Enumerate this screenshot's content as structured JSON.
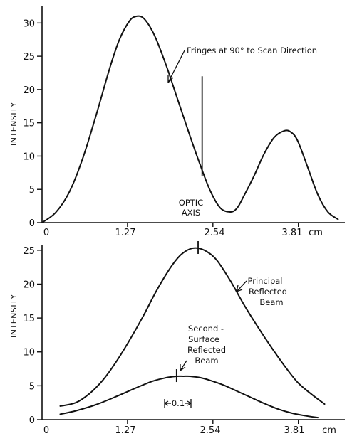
{
  "chart_data": [
    {
      "type": "line",
      "ylabel": "INTENSITY",
      "xlabel": "cm",
      "xlim": [
        0,
        4.47
      ],
      "ylim": [
        0,
        35
      ],
      "x_ticks": [
        0,
        1.27,
        2.54,
        3.81
      ],
      "x_tick_labels": [
        "0",
        "1.27",
        "2.54",
        "3.81"
      ],
      "x_unit_label": "cm",
      "y_ticks": [
        0,
        5,
        10,
        15,
        20,
        25,
        30
      ],
      "y_tick_labels": [
        "0",
        "5",
        "10",
        "15",
        "20",
        "25",
        "30"
      ],
      "series": [
        {
          "x": [
            0.0,
            0.2,
            0.4,
            0.6,
            0.8,
            1.0,
            1.15,
            1.3,
            1.4,
            1.5,
            1.6,
            1.7,
            1.85,
            2.0,
            2.2,
            2.35,
            2.5,
            2.65,
            2.8,
            2.9,
            3.0,
            3.15,
            3.3,
            3.45,
            3.6,
            3.7,
            3.8,
            3.95,
            4.1,
            4.25,
            4.4
          ],
          "y": [
            0.0,
            1.5,
            4.5,
            9.5,
            16.0,
            23.0,
            27.5,
            30.3,
            31.0,
            30.8,
            29.5,
            27.5,
            23.5,
            19.0,
            13.0,
            8.7,
            4.8,
            2.2,
            1.6,
            2.2,
            4.0,
            7.0,
            10.3,
            12.8,
            13.8,
            13.6,
            12.3,
            8.3,
            4.2,
            1.6,
            0.5
          ]
        }
      ],
      "annotations": [
        {
          "text": "Fringes at 90° to Scan Direction",
          "x": 2.38,
          "y": 10.5
        },
        {
          "text": "OPTIC",
          "x": 2.38,
          "y": 3
        },
        {
          "text": "AXIS",
          "x": 2.38,
          "y": 1.5
        }
      ],
      "marker_x": 2.38
    },
    {
      "type": "line",
      "ylabel": "INTENSITY",
      "xlabel": "cm",
      "xlim": [
        0,
        4.47
      ],
      "ylim": [
        0,
        27
      ],
      "x_ticks": [
        0,
        1.27,
        2.54,
        3.81
      ],
      "x_tick_labels": [
        "0",
        "1.27",
        "2.54",
        "3.81"
      ],
      "x_unit_label": "cm",
      "y_ticks": [
        0,
        5,
        10,
        15,
        20,
        25
      ],
      "y_tick_labels": [
        "0",
        "5",
        "10",
        "15",
        "20",
        "25"
      ],
      "series": [
        {
          "name": "Principal Reflected Beam",
          "x": [
            0.27,
            0.5,
            0.7,
            0.9,
            1.1,
            1.3,
            1.5,
            1.7,
            1.9,
            2.05,
            2.2,
            2.32,
            2.45,
            2.6,
            2.8,
            3.0,
            3.2,
            3.4,
            3.6,
            3.8,
            4.0,
            4.2
          ],
          "y": [
            2.0,
            2.5,
            3.8,
            5.8,
            8.5,
            11.7,
            15.2,
            19.0,
            22.3,
            24.2,
            25.2,
            25.3,
            24.8,
            23.5,
            20.5,
            17.0,
            13.8,
            10.8,
            8.0,
            5.5,
            3.8,
            2.3
          ]
        },
        {
          "name": "Second - Surface Reflected Beam",
          "x": [
            0.27,
            0.5,
            0.8,
            1.1,
            1.4,
            1.65,
            1.85,
            2.0,
            2.1,
            2.2,
            2.35,
            2.5,
            2.7,
            2.9,
            3.1,
            3.3,
            3.5,
            3.7,
            3.9,
            4.1
          ],
          "y": [
            0.8,
            1.3,
            2.2,
            3.4,
            4.7,
            5.7,
            6.2,
            6.4,
            6.4,
            6.4,
            6.2,
            5.8,
            5.1,
            4.2,
            3.3,
            2.4,
            1.6,
            1.0,
            0.6,
            0.3
          ]
        }
      ],
      "annotations": [
        {
          "text": "Principal",
          "series": 0
        },
        {
          "text": "Reflected",
          "series": 0
        },
        {
          "text": "Beam",
          "series": 0
        },
        {
          "text": "Second -",
          "series": 1
        },
        {
          "text": "Surface",
          "series": 1
        },
        {
          "text": "Reflected",
          "series": 1
        },
        {
          "text": "Beam",
          "series": 1
        },
        {
          "text": "0.1",
          "x": 2.05,
          "y": 2.5
        }
      ],
      "peak_markers_x": [
        2.32,
        2.0
      ]
    }
  ]
}
